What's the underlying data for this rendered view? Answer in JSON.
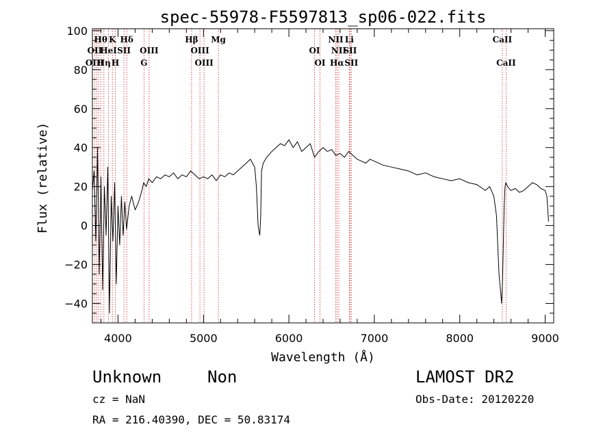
{
  "chart_data": {
    "type": "line",
    "title": "spec-55978-F5597813_sp06-022.fits",
    "xlabel": "Wavelength (Å)",
    "ylabel": "Flux (relative)",
    "xlim": [
      3700,
      9100
    ],
    "ylim": [
      -50,
      101
    ],
    "x_ticks": [
      4000,
      5000,
      6000,
      7000,
      8000,
      9000
    ],
    "x_tick_labels": [
      "4000",
      "5000",
      "6000",
      "7000",
      "8000",
      "9000"
    ],
    "y_ticks": [
      -40,
      -20,
      0,
      20,
      40,
      60,
      80,
      100
    ],
    "y_tick_labels": [
      "−40",
      "−20",
      "0",
      "20",
      "40",
      "60",
      "80",
      "100"
    ],
    "grid": false,
    "series": [
      {
        "x": [
          3700,
          3720,
          3740,
          3760,
          3780,
          3800,
          3820,
          3840,
          3860,
          3880,
          3900,
          3920,
          3940,
          3960,
          3980,
          4000,
          4020,
          4040,
          4060,
          4080,
          4100,
          4130,
          4160,
          4200,
          4240,
          4280,
          4300,
          4330,
          4360,
          4400,
          4450,
          4500,
          4550,
          4600,
          4650,
          4700,
          4750,
          4800,
          4850,
          4900,
          4950,
          5000,
          5050,
          5100,
          5150,
          5200,
          5250,
          5300,
          5350,
          5400,
          5450,
          5500,
          5550,
          5600,
          5620,
          5640,
          5650,
          5660,
          5670,
          5680,
          5700,
          5740,
          5800,
          5850,
          5900,
          5950,
          6000,
          6050,
          6100,
          6150,
          6200,
          6250,
          6300,
          6350,
          6400,
          6450,
          6500,
          6550,
          6600,
          6650,
          6700,
          6750,
          6800,
          6850,
          6900,
          6950,
          7000,
          7100,
          7200,
          7300,
          7400,
          7500,
          7600,
          7700,
          7800,
          7900,
          8000,
          8100,
          8200,
          8300,
          8350,
          8400,
          8430,
          8460,
          8490,
          8500,
          8510,
          8520,
          8530,
          8540,
          8560,
          8600,
          8650,
          8700,
          8750,
          8800,
          8850,
          8900,
          8950,
          9000,
          9020,
          9040
        ],
        "y": [
          18,
          28,
          -8,
          40,
          -25,
          25,
          -33,
          20,
          -5,
          30,
          -45,
          15,
          -8,
          22,
          -30,
          10,
          -10,
          15,
          -5,
          12,
          -2,
          10,
          15,
          8,
          12,
          18,
          22,
          20,
          24,
          22,
          25,
          24,
          26,
          25,
          27,
          24,
          26,
          25,
          28,
          26,
          24,
          25,
          24,
          26,
          23,
          26,
          25,
          27,
          26,
          28,
          30,
          32,
          34,
          30,
          20,
          0,
          -3,
          -5,
          5,
          28,
          32,
          35,
          38,
          40,
          42,
          41,
          44,
          40,
          43,
          38,
          40,
          42,
          35,
          38,
          40,
          38,
          39,
          36,
          37,
          35,
          38,
          36,
          34,
          33,
          32,
          34,
          33,
          31,
          30,
          29,
          28,
          26,
          27,
          25,
          24,
          23,
          24,
          22,
          21,
          18,
          20,
          15,
          5,
          -25,
          -40,
          -30,
          -10,
          10,
          20,
          22,
          20,
          18,
          19,
          17,
          18,
          20,
          22,
          21,
          19,
          18,
          15,
          2
        ]
      }
    ],
    "line_labels": [
      {
        "text": "Hθ",
        "x": 3798,
        "row": 1,
        "greek": true
      },
      {
        "text": "K",
        "x": 3934,
        "row": 1
      },
      {
        "text": "Hδ",
        "x": 4102,
        "row": 1,
        "greek": true
      },
      {
        "text": "Hβ",
        "x": 4861,
        "row": 1,
        "greek": true
      },
      {
        "text": "Mg",
        "x": 5175,
        "row": 1
      },
      {
        "text": "NII",
        "x": 6548,
        "row": 1
      },
      {
        "text": "Li",
        "x": 6708,
        "row": 1
      },
      {
        "text": "CaII",
        "x": 8498,
        "row": 1
      },
      {
        "text": "OII",
        "x": 3727,
        "row": 2
      },
      {
        "text": "HeI",
        "x": 3889,
        "row": 2
      },
      {
        "text": "SII",
        "x": 4069,
        "row": 2
      },
      {
        "text": "OIII",
        "x": 4363,
        "row": 2
      },
      {
        "text": "OIII",
        "x": 4959,
        "row": 2
      },
      {
        "text": "OI",
        "x": 6300,
        "row": 2
      },
      {
        "text": "NII",
        "x": 6584,
        "row": 2
      },
      {
        "text": "SII",
        "x": 6716,
        "row": 2
      },
      {
        "text": "OIII",
        "x": 3727,
        "row": 3
      },
      {
        "text": "Hη",
        "x": 3835,
        "row": 3,
        "greek": true
      },
      {
        "text": "H",
        "x": 3968,
        "row": 3
      },
      {
        "text": "G",
        "x": 4304,
        "row": 3
      },
      {
        "text": "OIII",
        "x": 5007,
        "row": 3
      },
      {
        "text": "OI",
        "x": 6364,
        "row": 3
      },
      {
        "text": "Hα",
        "x": 6563,
        "row": 3,
        "greek": true
      },
      {
        "text": "SII",
        "x": 6731,
        "row": 3
      },
      {
        "text": "CaII",
        "x": 8542,
        "row": 3
      }
    ],
    "line_marker_x": [
      3727,
      3750,
      3771,
      3798,
      3835,
      3889,
      3934,
      3968,
      4069,
      4102,
      4304,
      4363,
      4861,
      4959,
      5007,
      5175,
      6300,
      6364,
      6548,
      6563,
      6584,
      6708,
      6716,
      6731,
      8498,
      8542
    ],
    "line_color": "#000000",
    "marker_color": "#cc2222"
  },
  "info": {
    "object_class": "Unknown",
    "subclass": "Non",
    "survey": "LAMOST DR2",
    "cz": "cz = NaN",
    "obs_date": "Obs-Date: 20120220",
    "coords": "RA = 216.40390, DEC =  50.83174"
  }
}
